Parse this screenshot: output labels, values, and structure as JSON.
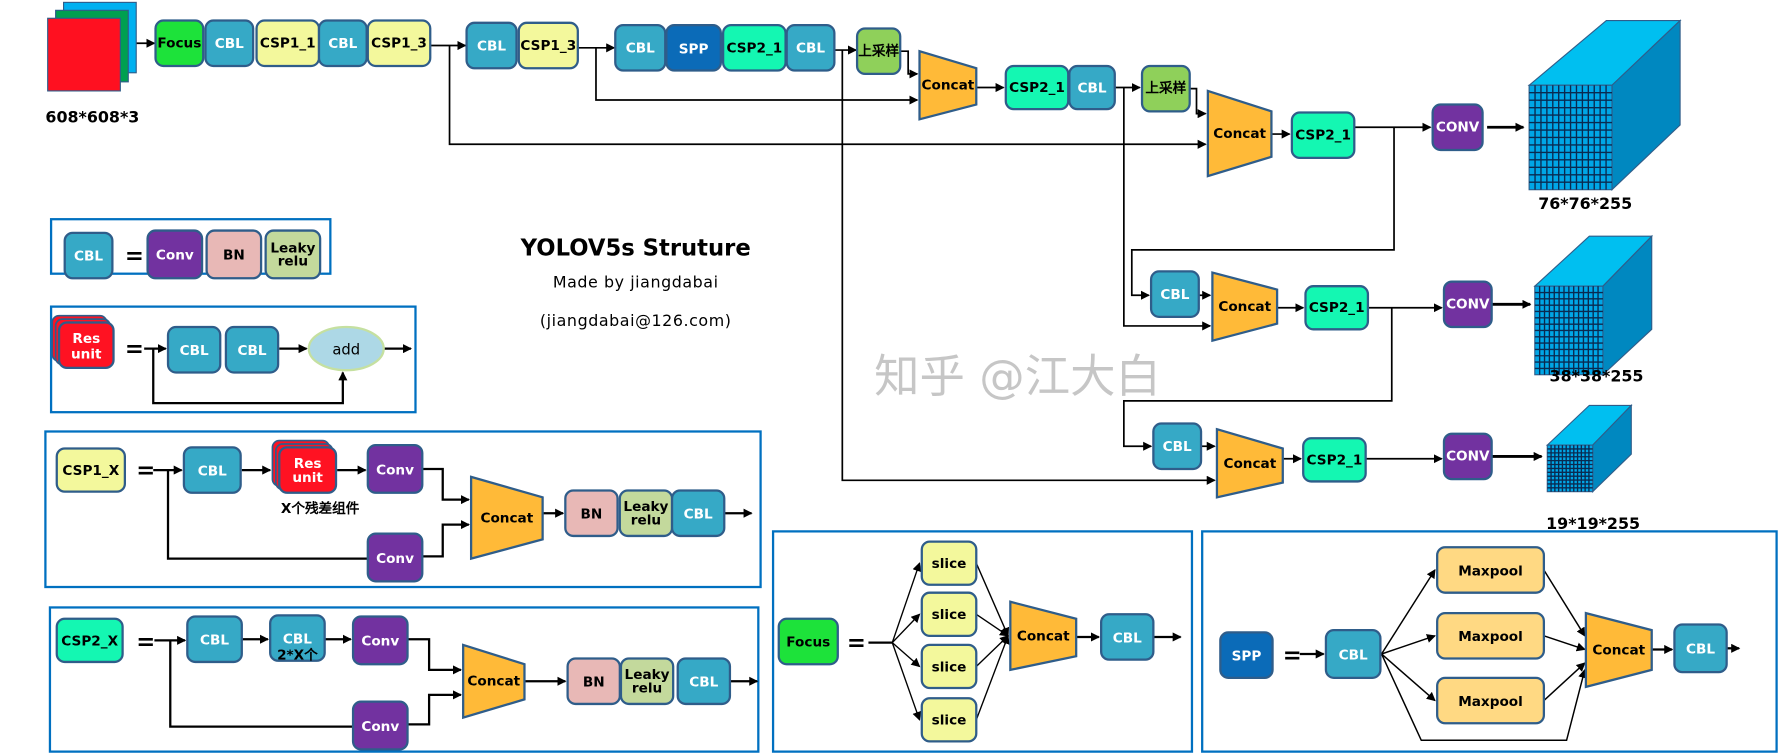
{
  "title": "YOLOV5s Struture",
  "author": "Made by jiangdabai",
  "email": "(jiangdabai@126.com)",
  "watermark": "知乎 @江大白",
  "input_size": "608*608*3",
  "outputs": [
    "76*76*255",
    "38*38*255",
    "19*19*255"
  ],
  "main_nodes": [
    "Focus",
    "CBL",
    "CSP1_1",
    "CBL",
    "CSP1_3",
    "CBL",
    "CSP1_3",
    "CBL",
    "SPP",
    "CSP2_1",
    "CBL",
    "上采样",
    "Concat",
    "CSP2_1",
    "CBL",
    "上采样",
    "Concat",
    "CSP2_1",
    "CONV",
    "CBL",
    "Concat",
    "CSP2_1",
    "CONV",
    "CBL",
    "Concat",
    "CSP2_1",
    "CONV"
  ],
  "legend_cbl": {
    "lhs": "CBL",
    "eq": "=",
    "parts": [
      "Conv",
      "BN",
      "Leaky\nrelu"
    ]
  },
  "legend_res": {
    "lhs": "Res\nunit",
    "eq": "=",
    "parts": [
      "CBL",
      "CBL",
      "add"
    ]
  },
  "legend_csp1": {
    "lhs": "CSP1_X",
    "eq": "=",
    "parts": [
      "CBL",
      "Res\nunit",
      "Conv",
      "Conv",
      "Concat",
      "BN",
      "Leaky\nrelu",
      "CBL"
    ],
    "caption": "X个残差组件"
  },
  "legend_csp2": {
    "lhs": "CSP2_X",
    "eq": "=",
    "parts": [
      "CBL",
      "CBL",
      "Conv",
      "Conv",
      "Concat",
      "BN",
      "Leaky\nrelu",
      "CBL"
    ],
    "caption": "2*X个"
  },
  "legend_focus": {
    "lhs": "Focus",
    "eq": "=",
    "parts": [
      "slice",
      "slice",
      "slice",
      "slice",
      "Concat",
      "CBL"
    ]
  },
  "legend_spp": {
    "lhs": "SPP",
    "eq": "=",
    "parts": [
      "CBL",
      "Maxpool",
      "Maxpool",
      "Maxpool",
      "Concat",
      "CBL"
    ]
  },
  "colors": {
    "cbl": "#36a9c6",
    "csp1": "#f3f89c",
    "csp2": "#14f7b2",
    "focus": "#1de23a",
    "spp": "#0b6bb8",
    "conv": "#7232a0",
    "bn": "#e8b8b6",
    "leaky": "#c3d99c",
    "res": "#ff1222",
    "upsample": "#8fd05a",
    "maxpool": "#ffd983",
    "concat": "#ffba38",
    "frame": "#0070c0",
    "cube_front": "#00a6e6",
    "cube_top": "#00bff0",
    "cube_side": "#0088c0"
  }
}
